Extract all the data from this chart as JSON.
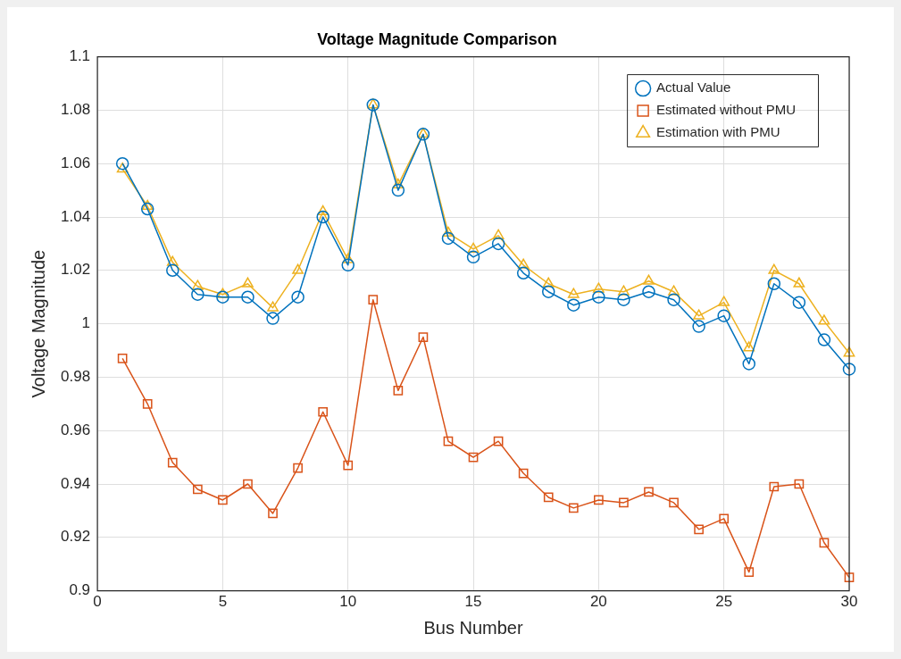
{
  "chart_data": {
    "type": "line",
    "title": "Voltage Magnitude Comparison",
    "xlabel": "Bus Number",
    "ylabel": "Voltage Magnitude",
    "x": [
      1,
      2,
      3,
      4,
      5,
      6,
      7,
      8,
      9,
      10,
      11,
      12,
      13,
      14,
      15,
      16,
      17,
      18,
      19,
      20,
      21,
      22,
      23,
      24,
      25,
      26,
      27,
      28,
      29,
      30
    ],
    "series": [
      {
        "name": "Actual Value",
        "color": "#0072bd",
        "marker": "circle",
        "values": [
          1.06,
          1.043,
          1.02,
          1.011,
          1.01,
          1.01,
          1.002,
          1.01,
          1.04,
          1.022,
          1.082,
          1.05,
          1.071,
          1.032,
          1.025,
          1.03,
          1.019,
          1.012,
          1.007,
          1.01,
          1.009,
          1.012,
          1.009,
          0.999,
          1.003,
          0.985,
          1.015,
          1.008,
          0.994,
          0.983
        ]
      },
      {
        "name": "Estimated without PMU",
        "color": "#d95319",
        "marker": "square",
        "values": [
          0.987,
          0.97,
          0.948,
          0.938,
          0.934,
          0.94,
          0.929,
          0.946,
          0.967,
          0.947,
          1.009,
          0.975,
          0.995,
          0.956,
          0.95,
          0.956,
          0.944,
          0.935,
          0.931,
          0.934,
          0.933,
          0.937,
          0.933,
          0.923,
          0.927,
          0.907,
          0.939,
          0.94,
          0.918,
          0.905
        ]
      },
      {
        "name": "Estimation with PMU",
        "color": "#edb120",
        "marker": "triangle",
        "values": [
          1.058,
          1.044,
          1.023,
          1.014,
          1.011,
          1.015,
          1.006,
          1.02,
          1.042,
          1.024,
          1.082,
          1.052,
          1.071,
          1.034,
          1.028,
          1.033,
          1.022,
          1.015,
          1.011,
          1.013,
          1.012,
          1.016,
          1.012,
          1.003,
          1.008,
          0.991,
          1.02,
          1.015,
          1.001,
          0.989
        ]
      }
    ],
    "xlim": [
      0,
      30
    ],
    "xticks": [
      0,
      5,
      10,
      15,
      20,
      25,
      30
    ],
    "ylim": [
      0.9,
      1.1
    ],
    "yticks": [
      0.9,
      0.92,
      0.94,
      0.96,
      0.98,
      1,
      1.02,
      1.04,
      1.06,
      1.08,
      1.1
    ],
    "grid": true,
    "legend": "top right",
    "line_style": "solid"
  }
}
